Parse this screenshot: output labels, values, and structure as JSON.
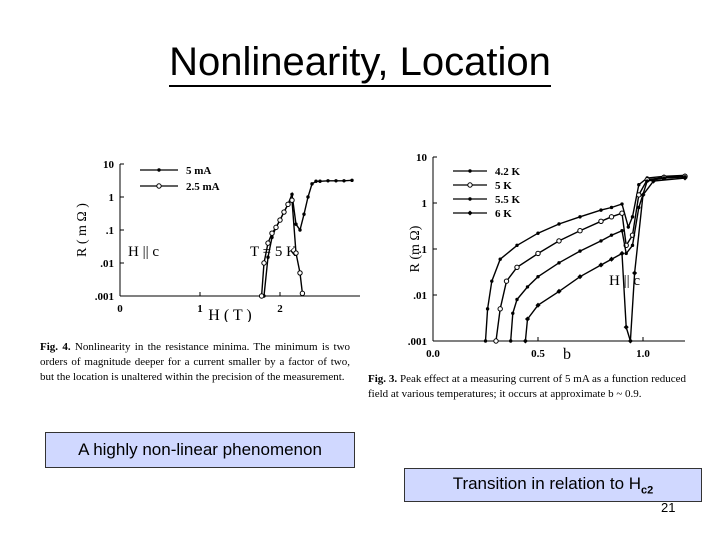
{
  "slide": {
    "title": "Nonlinearity, Location",
    "page_number": "21"
  },
  "callouts": {
    "left": "A highly non-linear phenomenon",
    "right_prefix": "Transition in relation to H",
    "right_sub": "c2"
  },
  "fig4": {
    "caption_label": "Fig. 4.",
    "caption_body": "Nonlinearity in the resistance minima. The minimum is two orders of magnitude deeper for a current smaller by a factor of two, but the location is unaltered within the precision of the measurement.",
    "annotation_field": "H || c",
    "annotation_temp": "T = 5 K"
  },
  "fig3": {
    "caption_label": "Fig. 3.",
    "caption_body": "Peak effect at a measuring current of 5 mA as a function reduced field at various temperatures; it occurs at approximate b ~ 0.9.",
    "annotation_field": "H || c"
  },
  "chart_data": [
    {
      "type": "line",
      "xlabel": "H ( T )",
      "ylabel": "R ( m Ω )",
      "y_scale": "log",
      "xlim": [
        0,
        3
      ],
      "ylim": [
        0.001,
        10
      ],
      "x_ticks": [
        "0",
        "1",
        "2"
      ],
      "x_tick_values": [
        0,
        1,
        2
      ],
      "y_ticks": [
        "10",
        "1",
        ".1",
        ".01",
        ".001"
      ],
      "y_tick_values": [
        10,
        1,
        0.1,
        0.01,
        0.001
      ],
      "legend_position": "top",
      "series": [
        {
          "name": "5 mA",
          "color": "#000000",
          "marker": "dot",
          "points": [
            [
              1.8,
              0.001
            ],
            [
              1.85,
              0.015
            ],
            [
              1.9,
              0.06
            ],
            [
              1.95,
              0.12
            ],
            [
              2.0,
              0.2
            ],
            [
              2.05,
              0.35
            ],
            [
              2.1,
              0.6
            ],
            [
              2.15,
              1.2
            ],
            [
              2.2,
              0.15
            ],
            [
              2.25,
              0.1
            ],
            [
              2.3,
              0.3
            ],
            [
              2.35,
              1.0
            ],
            [
              2.4,
              2.5
            ],
            [
              2.45,
              3.0
            ],
            [
              2.5,
              3.0
            ],
            [
              2.6,
              3.1
            ],
            [
              2.7,
              3.1
            ],
            [
              2.8,
              3.1
            ],
            [
              2.9,
              3.2
            ]
          ]
        },
        {
          "name": "2.5 mA",
          "color": "#000000",
          "marker": "circle",
          "points": [
            [
              1.77,
              0.001
            ],
            [
              1.8,
              0.01
            ],
            [
              1.85,
              0.04
            ],
            [
              1.9,
              0.08
            ],
            [
              1.95,
              0.12
            ],
            [
              2.0,
              0.2
            ],
            [
              2.05,
              0.35
            ],
            [
              2.1,
              0.6
            ],
            [
              2.15,
              0.8
            ],
            [
              2.2,
              0.02
            ],
            [
              2.25,
              0.005
            ],
            [
              2.28,
              0.0012
            ]
          ]
        }
      ]
    },
    {
      "type": "line",
      "xlabel": "b",
      "ylabel": "R (m Ω)",
      "y_scale": "log",
      "xlim": [
        0,
        1.2
      ],
      "ylim": [
        0.001,
        10
      ],
      "x_ticks": [
        "0.0",
        "0.5",
        "1.0"
      ],
      "x_tick_values": [
        0,
        0.5,
        1.0
      ],
      "y_ticks": [
        "10",
        "1",
        ".1",
        ".01",
        ".001"
      ],
      "y_tick_values": [
        10,
        1,
        0.1,
        0.01,
        0.001
      ],
      "legend_position": "top",
      "series": [
        {
          "name": "4.2 K",
          "color": "#000000",
          "marker": "dot",
          "points": [
            [
              0.25,
              0.001
            ],
            [
              0.26,
              0.005
            ],
            [
              0.28,
              0.02
            ],
            [
              0.32,
              0.06
            ],
            [
              0.4,
              0.12
            ],
            [
              0.5,
              0.22
            ],
            [
              0.6,
              0.35
            ],
            [
              0.7,
              0.5
            ],
            [
              0.8,
              0.7
            ],
            [
              0.85,
              0.8
            ],
            [
              0.9,
              0.95
            ],
            [
              0.93,
              0.3
            ],
            [
              0.95,
              0.5
            ],
            [
              0.98,
              2.5
            ],
            [
              1.02,
              3.5
            ],
            [
              1.1,
              3.8
            ],
            [
              1.2,
              4.0
            ]
          ]
        },
        {
          "name": "5 K",
          "color": "#000000",
          "marker": "circle",
          "points": [
            [
              0.3,
              0.001
            ],
            [
              0.32,
              0.005
            ],
            [
              0.35,
              0.02
            ],
            [
              0.4,
              0.04
            ],
            [
              0.5,
              0.08
            ],
            [
              0.6,
              0.15
            ],
            [
              0.7,
              0.25
            ],
            [
              0.8,
              0.4
            ],
            [
              0.85,
              0.5
            ],
            [
              0.9,
              0.6
            ],
            [
              0.92,
              0.12
            ],
            [
              0.95,
              0.2
            ],
            [
              0.98,
              1.5
            ],
            [
              1.02,
              3.2
            ],
            [
              1.1,
              3.6
            ],
            [
              1.2,
              3.8
            ]
          ]
        },
        {
          "name": "5.5 K",
          "color": "#000000",
          "marker": "dot",
          "points": [
            [
              0.37,
              0.001
            ],
            [
              0.38,
              0.004
            ],
            [
              0.4,
              0.008
            ],
            [
              0.45,
              0.015
            ],
            [
              0.5,
              0.025
            ],
            [
              0.6,
              0.05
            ],
            [
              0.7,
              0.09
            ],
            [
              0.8,
              0.15
            ],
            [
              0.85,
              0.2
            ],
            [
              0.9,
              0.25
            ],
            [
              0.92,
              0.08
            ],
            [
              0.95,
              0.12
            ],
            [
              0.98,
              0.8
            ],
            [
              1.02,
              3.0
            ],
            [
              1.1,
              3.5
            ],
            [
              1.2,
              3.7
            ]
          ]
        },
        {
          "name": "6 K",
          "color": "#000000",
          "marker": "diamond",
          "points": [
            [
              0.44,
              0.001
            ],
            [
              0.45,
              0.003
            ],
            [
              0.5,
              0.006
            ],
            [
              0.6,
              0.012
            ],
            [
              0.7,
              0.025
            ],
            [
              0.8,
              0.045
            ],
            [
              0.85,
              0.06
            ],
            [
              0.9,
              0.08
            ],
            [
              0.92,
              0.002
            ],
            [
              0.94,
              0.001
            ],
            [
              0.96,
              0.03
            ],
            [
              1.0,
              1.5
            ],
            [
              1.05,
              3.0
            ],
            [
              1.2,
              3.5
            ]
          ]
        }
      ]
    }
  ]
}
